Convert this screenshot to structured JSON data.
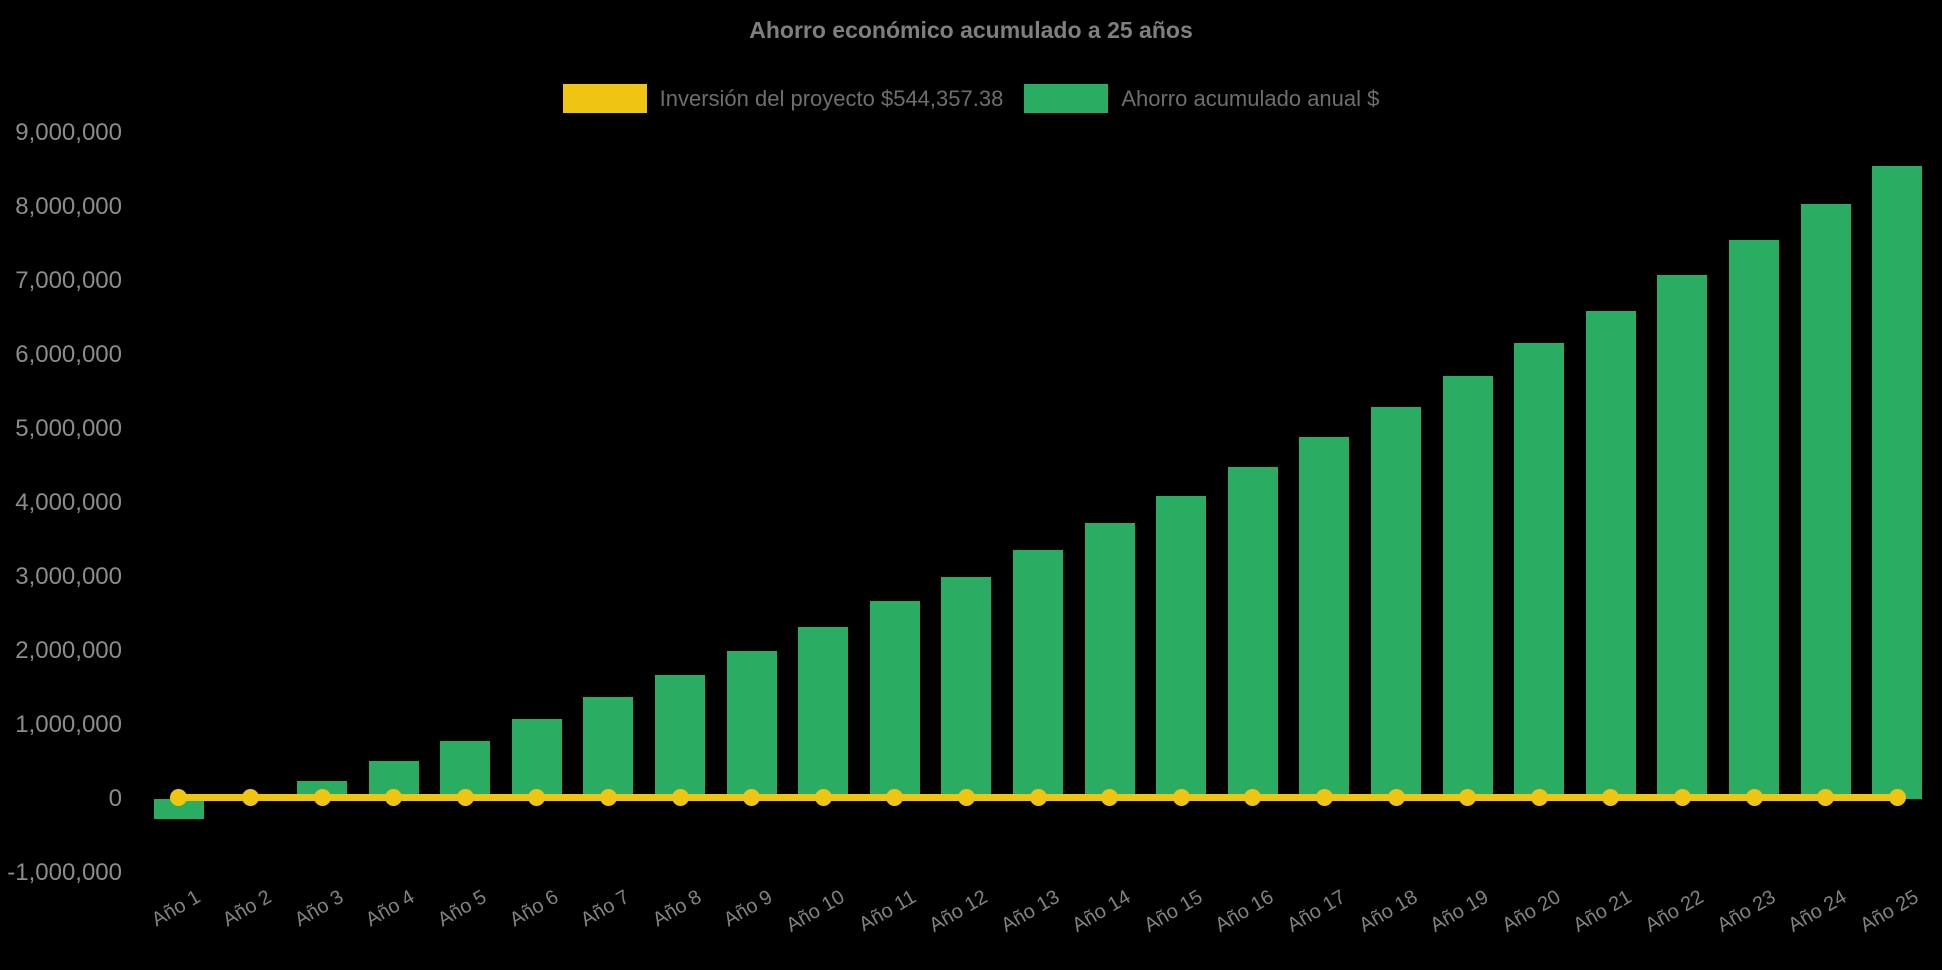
{
  "title": "Ahorro económico acumulado a 25 años",
  "colors": {
    "background": "#000000",
    "bar_green": "#2aad62",
    "line_yellow": "#f0c412",
    "title_text": "#7f7f7f",
    "axis_text": "#8c8c8c",
    "legend_text": "#6e6e6e"
  },
  "chart_data": {
    "type": "bar",
    "title": "Ahorro económico acumulado a 25 años",
    "categories": [
      "Año 1",
      "Año 2",
      "Año 3",
      "Año 4",
      "Año 5",
      "Año 6",
      "Año 7",
      "Año 8",
      "Año 9",
      "Año 10",
      "Año 11",
      "Año 12",
      "Año 13",
      "Año 14",
      "Año 15",
      "Año 16",
      "Año 17",
      "Año 18",
      "Año 19",
      "Año 20",
      "Año 21",
      "Año 22",
      "Año 23",
      "Año 24",
      "Año 25"
    ],
    "series": [
      {
        "name": "Inversión del proyecto $544,357.38",
        "type": "line",
        "color": "#f0c412",
        "investment_amount": 544357.38,
        "values": [
          20000,
          20000,
          20000,
          20000,
          20000,
          20000,
          20000,
          20000,
          20000,
          20000,
          20000,
          20000,
          20000,
          20000,
          20000,
          20000,
          20000,
          20000,
          20000,
          20000,
          20000,
          20000,
          20000,
          20000,
          20000
        ]
      },
      {
        "name": "Ahorro acumulado anual $",
        "type": "bar",
        "color": "#2aad62",
        "values": [
          -270000,
          30000,
          250000,
          510000,
          785000,
          1080000,
          1385000,
          1680000,
          2000000,
          2330000,
          2670000,
          3005000,
          3365000,
          3730000,
          4100000,
          4490000,
          4890000,
          5295000,
          5710000,
          6160000,
          6595000,
          7085000,
          7550000,
          8040000,
          8560000
        ]
      }
    ],
    "ylim": [
      -1000000,
      9000000
    ],
    "ytick_step": 1000000,
    "ytick_labels": [
      "9,000,000",
      "8,000,000",
      "7,000,000",
      "6,000,000",
      "5,000,000",
      "4,000,000",
      "3,000,000",
      "2,000,000",
      "1,000,000",
      "0",
      "-1,000,000"
    ],
    "xlabel": "",
    "ylabel": "",
    "grid": false,
    "legend_position": "top"
  }
}
